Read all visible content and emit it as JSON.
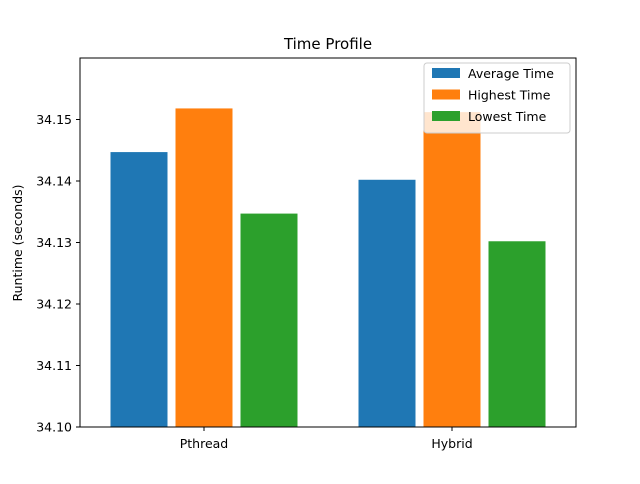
{
  "chart_data": {
    "type": "bar",
    "title": "Time Profile",
    "xlabel": "",
    "ylabel": "Runtime (seconds)",
    "ylim": [
      34.1,
      34.16
    ],
    "yticks": [
      "34.10",
      "34.11",
      "34.12",
      "34.13",
      "34.14",
      "34.15"
    ],
    "ytick_values": [
      34.1,
      34.11,
      34.12,
      34.13,
      34.14,
      34.15
    ],
    "categories": [
      "Pthread",
      "Hybrid"
    ],
    "series": [
      {
        "name": "Average Time",
        "color": "#1f77b4",
        "values": [
          34.1447,
          34.1402
        ]
      },
      {
        "name": "Highest Time",
        "color": "#ff7f0e",
        "values": [
          34.1518,
          34.1512
        ]
      },
      {
        "name": "Lowest Time",
        "color": "#2ca02c",
        "values": [
          34.1347,
          34.1302
        ]
      }
    ],
    "legend_position": "top-right",
    "grid": false
  }
}
